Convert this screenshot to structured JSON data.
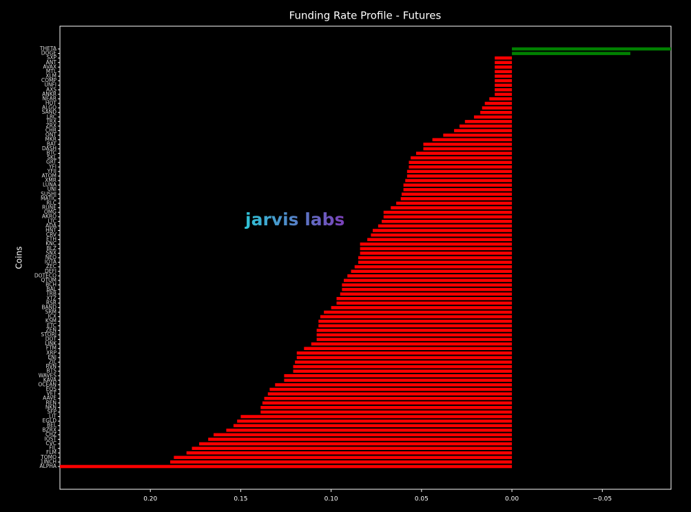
{
  "chart_data": {
    "type": "barh",
    "title": "Funding Rate Profile - Futures",
    "ylabel": "Coins",
    "watermark": "jarvis labs",
    "categories": [
      "THETA",
      "DOGE",
      "SXP",
      "ANT",
      "AVAX",
      "MTL",
      "XLM",
      "COMP",
      "UNFI",
      "AXS",
      "ANKR",
      "NEAR",
      "HOT",
      "ALGO",
      "SAND",
      "LRC",
      "TRX",
      "ZRX",
      "CHR",
      "ONT",
      "MKR",
      "BAT",
      "DASH",
      "BTC",
      "SKL",
      "GRT",
      "YFI",
      "YFII",
      "ATOM",
      "XMR",
      "LUNA",
      "UNI",
      "SUSHI",
      "MATIC",
      "RLC",
      "RUNE",
      "OMG",
      "AKRO",
      "LTC",
      "ADA",
      "HNT",
      "CRV",
      "ETH",
      "KNC",
      "BLZ",
      "SNX",
      "NEO",
      "IOTA",
      "ZEC",
      "DEFI",
      "DOTECO",
      "QTUM",
      "BCH",
      "BAL",
      "TRB",
      "XTZ",
      "RSR",
      "BAND",
      "SRM",
      "ICX",
      "KSM",
      "ETC",
      "ZEN",
      "STORJ",
      "DOT",
      "LINK",
      "FTM",
      "XRP",
      "ENJ",
      "ZIL",
      "RVN",
      "BTS",
      "WAVES",
      "KAVA",
      "OCEAN",
      "EOS",
      "VET",
      "AAVE",
      "REN",
      "NKN",
      "SFP",
      "LIT",
      "EGLD",
      "BEL",
      "BZRX",
      "CHZ",
      "IOST",
      "CVC",
      "FIL",
      "FLM",
      "TOMO",
      "1INCH",
      "ALPHA"
    ],
    "values": [
      -0.088,
      -0.0655,
      0.0095,
      0.0095,
      0.0095,
      0.0095,
      0.0095,
      0.0095,
      0.0095,
      0.0095,
      0.0095,
      0.0125,
      0.015,
      0.0165,
      0.0175,
      0.021,
      0.026,
      0.029,
      0.032,
      0.038,
      0.044,
      0.049,
      0.049,
      0.053,
      0.056,
      0.057,
      0.057,
      0.058,
      0.058,
      0.059,
      0.06,
      0.06,
      0.061,
      0.0615,
      0.064,
      0.067,
      0.071,
      0.071,
      0.072,
      0.074,
      0.077,
      0.078,
      0.08,
      0.084,
      0.084,
      0.084,
      0.085,
      0.085,
      0.087,
      0.089,
      0.091,
      0.093,
      0.094,
      0.094,
      0.095,
      0.097,
      0.097,
      0.1,
      0.104,
      0.106,
      0.107,
      0.107,
      0.108,
      0.108,
      0.108,
      0.111,
      0.115,
      0.119,
      0.119,
      0.12,
      0.121,
      0.121,
      0.126,
      0.126,
      0.131,
      0.134,
      0.135,
      0.137,
      0.138,
      0.139,
      0.139,
      0.15,
      0.152,
      0.154,
      0.158,
      0.165,
      0.168,
      0.173,
      0.177,
      0.18,
      0.187,
      0.189,
      0.25
    ],
    "positive_color": "#ff0000",
    "negative_color": "#008000",
    "xlim": [
      0.25,
      -0.088
    ],
    "x_inverted": true,
    "xticks": [
      {
        "value": 0.2,
        "label": "0.20"
      },
      {
        "value": 0.15,
        "label": "0.15"
      },
      {
        "value": 0.1,
        "label": "0.10"
      },
      {
        "value": 0.05,
        "label": "0.05"
      },
      {
        "value": 0,
        "label": "0.00"
      },
      {
        "value": -0.05,
        "label": "−0.05"
      }
    ]
  }
}
